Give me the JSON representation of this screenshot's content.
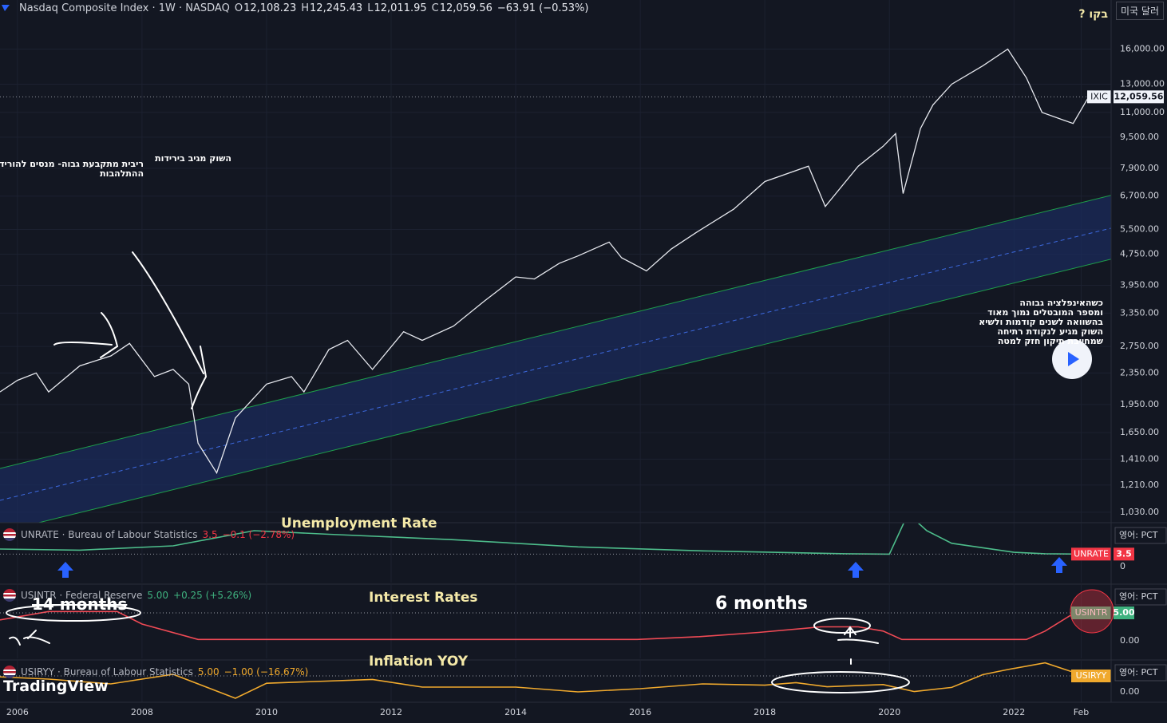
{
  "header": {
    "title": "Nasdaq Composite Index · 1W · NASDAQ",
    "ohlc": [
      {
        "key": "O",
        "value": "12,108.23"
      },
      {
        "key": "H",
        "value": "12,245.43"
      },
      {
        "key": "L",
        "value": "12,011.95"
      },
      {
        "key": "C",
        "value": "12,059.56"
      }
    ],
    "change": "−63.91 (−0.53%)",
    "currency": "미국 달러"
  },
  "ui": {
    "logo": "TradingView"
  },
  "annotations": [
    "ריבית מתקבעת גבוה- מנסים להוריד",
    "ההתלהבות",
    "השוק מגיב בירידות",
    "כשהאינפלציה גבוהה",
    "ומספר המובטלים נמוך מאוד",
    "בהשוואה לשנים קודמות ולשיא",
    "השוק מגיע לנקודת רתיחה",
    "שמחייבת תיקון חזק למטה",
    "בקו ?",
    "Unemployment Rate",
    "Interest Rates",
    "6 months",
    "Inflation YOY",
    "14 months"
  ],
  "chart_data": [
    {
      "type": "line",
      "log_scale": true,
      "grid": true,
      "x": [
        2005.72,
        2006.0,
        2006.3,
        2006.5,
        2007.0,
        2007.5,
        2007.8,
        2008.2,
        2008.5,
        2008.75,
        2008.9,
        2009.2,
        2009.5,
        2010.0,
        2010.4,
        2010.6,
        2011.0,
        2011.3,
        2011.7,
        2012.2,
        2012.5,
        2013.0,
        2013.5,
        2014.0,
        2014.3,
        2014.7,
        2015.0,
        2015.5,
        2015.7,
        2016.1,
        2016.5,
        2016.9,
        2017.5,
        2018.0,
        2018.7,
        2018.97,
        2019.5,
        2019.9,
        2020.1,
        2020.22,
        2020.5,
        2020.7,
        2021.0,
        2021.5,
        2021.9,
        2022.2,
        2022.45,
        2022.8,
        2022.95,
        2023.2
      ],
      "series": [
        {
          "name": "IXIC",
          "color": "#e6e8ee",
          "values": [
            2100,
            2250,
            2350,
            2100,
            2450,
            2600,
            2800,
            2300,
            2400,
            2200,
            1550,
            1300,
            1800,
            2200,
            2300,
            2100,
            2700,
            2850,
            2400,
            3000,
            2850,
            3100,
            3600,
            4150,
            4100,
            4500,
            4700,
            5100,
            4650,
            4300,
            4900,
            5400,
            6200,
            7300,
            8000,
            6300,
            8000,
            9000,
            9700,
            6800,
            10000,
            11500,
            13000,
            14500,
            16000,
            13500,
            11000,
            10500,
            10300,
            12059.56
          ]
        }
      ],
      "last_label": "12,059.56",
      "channel": {
        "x": [
          2005.72,
          2023.56
        ],
        "upper": [
          1335,
          6730
        ],
        "middle": [
          1105,
          5540
        ],
        "lower": [
          915,
          4610
        ],
        "color": "#1e9e4a",
        "mid_color": "#3d6ae0",
        "fill": "#1b2c5e"
      },
      "xlim": [
        2005.72,
        2023.56
      ],
      "ylim": [
        968,
        21400
      ],
      "yticks": [
        {
          "value": 1030,
          "label": "1,030.00"
        },
        {
          "value": 1210,
          "label": "1,210.00"
        },
        {
          "value": 1410,
          "label": "1,410.00"
        },
        {
          "value": 1650,
          "label": "1,650.00"
        },
        {
          "value": 1950,
          "label": "1,950.00"
        },
        {
          "value": 2350,
          "label": "2,350.00"
        },
        {
          "value": 2750,
          "label": "2,750.00"
        },
        {
          "value": 3350,
          "label": "3,350.00"
        },
        {
          "value": 3950,
          "label": "3,950.00"
        },
        {
          "value": 4750,
          "label": "4,750.00"
        },
        {
          "value": 5500,
          "label": "5,500.00"
        },
        {
          "value": 6700,
          "label": "6,700.00"
        },
        {
          "value": 7900,
          "label": "7,900.00"
        },
        {
          "value": 9500,
          "label": "9,500.00"
        },
        {
          "value": 11000,
          "label": "11,000.00"
        },
        {
          "value": 13000,
          "label": "13,000.00"
        },
        {
          "value": 16000,
          "label": "16,000.00"
        }
      ],
      "xticks": [
        2006,
        2008,
        2010,
        2012,
        2014,
        2016,
        2018,
        2020,
        2022,
        {
          "value": 2023.08,
          "label": "Feb"
        }
      ]
    },
    {
      "type": "line",
      "grid": false,
      "x": [
        2005.72,
        2007.0,
        2008.5,
        2009.8,
        2011.0,
        2013.0,
        2015.0,
        2017.0,
        2019.3,
        2020.0,
        2020.3,
        2020.6,
        2021.0,
        2022.0,
        2022.5,
        2023.2
      ],
      "series": [
        {
          "name": "UNRATE",
          "color": "#4dbd8b",
          "values": [
            4.9,
            4.6,
            5.8,
            10.0,
            9.0,
            7.5,
            5.5,
            4.4,
            3.6,
            3.5,
            14.7,
            10.0,
            6.5,
            4.0,
            3.6,
            3.5
          ]
        }
      ],
      "legend": {
        "name": "UNRATE · Bureau of Labour Statistics",
        "value": "3.5",
        "change": "−0.1 (−2.78%)",
        "color": "#f23645"
      },
      "last_label": "3.5",
      "tag_color": "#f23645",
      "scale_label": "영어: PCT",
      "xlim": [
        2005.72,
        2023.56
      ],
      "ylim": [
        -4.4,
        12.0
      ],
      "yticks": [
        0
      ]
    },
    {
      "type": "line",
      "grid": false,
      "x": [
        2005.72,
        2006.5,
        2007.6,
        2008.0,
        2008.9,
        2015.95,
        2016.95,
        2017.9,
        2018.9,
        2019.5,
        2019.9,
        2020.2,
        2022.2,
        2022.5,
        2022.9,
        2023.2
      ],
      "series": [
        {
          "name": "USINTR",
          "color": "#f04a55",
          "values": [
            3.75,
            5.25,
            5.25,
            3.0,
            0.25,
            0.25,
            0.75,
            1.5,
            2.5,
            2.5,
            1.75,
            0.25,
            0.25,
            1.75,
            4.5,
            5.0
          ]
        }
      ],
      "legend": {
        "name": "USINTR · Federal Reserve",
        "value": "5.00",
        "change": "+0.25 (+5.26%)",
        "color": "#3fb27f"
      },
      "last_label": "5.00",
      "tag_color": "#3fb27f",
      "scale_label": "영어: PCT",
      "xlim": [
        2005.72,
        2023.56
      ],
      "ylim": [
        -3.14,
        10
      ],
      "yticks": [
        {
          "value": 0,
          "label": "0.00"
        }
      ]
    },
    {
      "type": "line",
      "grid": false,
      "x": [
        2005.72,
        2006.5,
        2007.5,
        2008.5,
        2009.5,
        2010.0,
        2011.7,
        2012.5,
        2014.0,
        2015.0,
        2016.0,
        2017.0,
        2018.0,
        2018.5,
        2019.0,
        2019.9,
        2020.4,
        2021.0,
        2021.5,
        2021.9,
        2022.5,
        2022.9,
        2023.2
      ],
      "series": [
        {
          "name": "USIRYY",
          "color": "#f0a92d",
          "values": [
            4.7,
            4.0,
            2.5,
            5.5,
            -2.0,
            2.7,
            3.9,
            1.5,
            1.5,
            0,
            1.0,
            2.5,
            2.1,
            2.9,
            1.6,
            2.3,
            0.1,
            1.4,
            5.4,
            7.0,
            9.1,
            6.5,
            5.0
          ]
        }
      ],
      "legend": {
        "name": "USIRYY · Bureau of Labour Statistics",
        "value": "5.00",
        "change": "−1.00 (−16.67%)",
        "color": "#f0a92d"
      },
      "tag_color": "#f0a92d",
      "scale_label": "영어: PCT",
      "xlim": [
        2005.72,
        2023.56
      ],
      "ylim": [
        -3.25,
        9.75
      ],
      "yticks": [
        {
          "value": 0,
          "label": "0.00"
        }
      ]
    }
  ]
}
